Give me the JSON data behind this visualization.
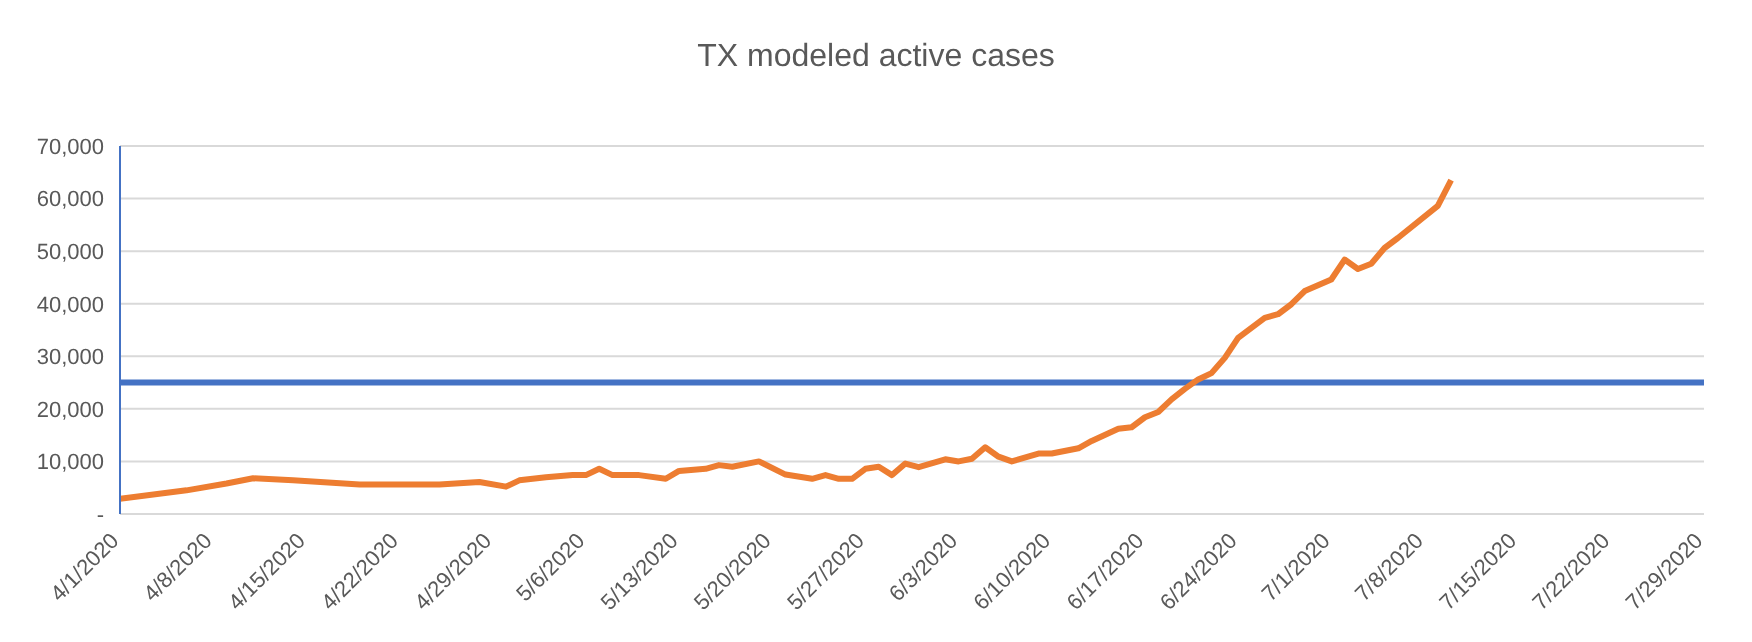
{
  "chart_data": {
    "type": "line",
    "title": "TX modeled active cases",
    "x": [
      "2020-04-01",
      "2020-04-06",
      "2020-04-09",
      "2020-04-11",
      "2020-04-14",
      "2020-04-19",
      "2020-04-25",
      "2020-04-28",
      "2020-04-30",
      "2020-05-01",
      "2020-05-03",
      "2020-05-05",
      "2020-05-06",
      "2020-05-07",
      "2020-05-08",
      "2020-05-10",
      "2020-05-12",
      "2020-05-13",
      "2020-05-15",
      "2020-05-16",
      "2020-05-17",
      "2020-05-19",
      "2020-05-21",
      "2020-05-23",
      "2020-05-24",
      "2020-05-25",
      "2020-05-26",
      "2020-05-27",
      "2020-05-28",
      "2020-05-29",
      "2020-05-30",
      "2020-05-31",
      "2020-06-02",
      "2020-06-03",
      "2020-06-04",
      "2020-06-05",
      "2020-06-06",
      "2020-06-07",
      "2020-06-09",
      "2020-06-10",
      "2020-06-12",
      "2020-06-13",
      "2020-06-15",
      "2020-06-16",
      "2020-06-17",
      "2020-06-18",
      "2020-06-19",
      "2020-06-20",
      "2020-06-21",
      "2020-06-22",
      "2020-06-23",
      "2020-06-24",
      "2020-06-26",
      "2020-06-27",
      "2020-06-28",
      "2020-06-29",
      "2020-07-01",
      "2020-07-02",
      "2020-07-03",
      "2020-07-04",
      "2020-07-05",
      "2020-07-06",
      "2020-07-09",
      "2020-07-10"
    ],
    "series": [
      {
        "color": "#ed7d31",
        "values": [
          2900,
          4500,
          5800,
          6800,
          6400,
          5600,
          5600,
          6100,
          5200,
          6400,
          7000,
          7400,
          7400,
          8600,
          7400,
          7400,
          6700,
          8200,
          8600,
          9300,
          9000,
          10000,
          7500,
          6700,
          7400,
          6700,
          6700,
          8600,
          9000,
          7400,
          9600,
          8900,
          10400,
          10000,
          10500,
          12700,
          10900,
          10000,
          11500,
          11500,
          12500,
          13900,
          16200,
          16500,
          18400,
          19400,
          21800,
          23800,
          25600,
          26800,
          29700,
          33500,
          37300,
          38000,
          39900,
          42400,
          44600,
          48400,
          46600,
          47600,
          50600,
          52500,
          58600,
          63500
        ]
      }
    ],
    "xlim": [
      "2020-04-01",
      "2020-07-29"
    ],
    "xticks": [
      {
        "value": "2020-04-01",
        "label": "4/1/2020"
      },
      {
        "value": "2020-04-08",
        "label": "4/8/2020"
      },
      {
        "value": "2020-04-15",
        "label": "4/15/2020"
      },
      {
        "value": "2020-04-22",
        "label": "4/22/2020"
      },
      {
        "value": "2020-04-29",
        "label": "4/29/2020"
      },
      {
        "value": "2020-05-06",
        "label": "5/6/2020"
      },
      {
        "value": "2020-05-13",
        "label": "5/13/2020"
      },
      {
        "value": "2020-05-20",
        "label": "5/20/2020"
      },
      {
        "value": "2020-05-27",
        "label": "5/27/2020"
      },
      {
        "value": "2020-06-03",
        "label": "6/3/2020"
      },
      {
        "value": "2020-06-10",
        "label": "6/10/2020"
      },
      {
        "value": "2020-06-17",
        "label": "6/17/2020"
      },
      {
        "value": "2020-06-24",
        "label": "6/24/2020"
      },
      {
        "value": "2020-07-01",
        "label": "7/1/2020"
      },
      {
        "value": "2020-07-08",
        "label": "7/8/2020"
      },
      {
        "value": "2020-07-15",
        "label": "7/15/2020"
      },
      {
        "value": "2020-07-22",
        "label": "7/22/2020"
      },
      {
        "value": "2020-07-29",
        "label": "7/29/2020"
      }
    ],
    "ylim": [
      0,
      70000
    ],
    "yticks": [
      {
        "value": 0,
        "label": "-"
      },
      {
        "value": 10000,
        "label": "10,000"
      },
      {
        "value": 20000,
        "label": "20,000"
      },
      {
        "value": 30000,
        "label": "30,000"
      },
      {
        "value": 40000,
        "label": "40,000"
      },
      {
        "value": 50000,
        "label": "50,000"
      },
      {
        "value": 60000,
        "label": "60,000"
      },
      {
        "value": 70000,
        "label": "70,000"
      }
    ],
    "ref_lines": [
      {
        "axis": "y",
        "value": 25000,
        "color": "#4472c4"
      }
    ],
    "grid": "y",
    "marker": "none",
    "line_style": "solid",
    "legend": false
  }
}
